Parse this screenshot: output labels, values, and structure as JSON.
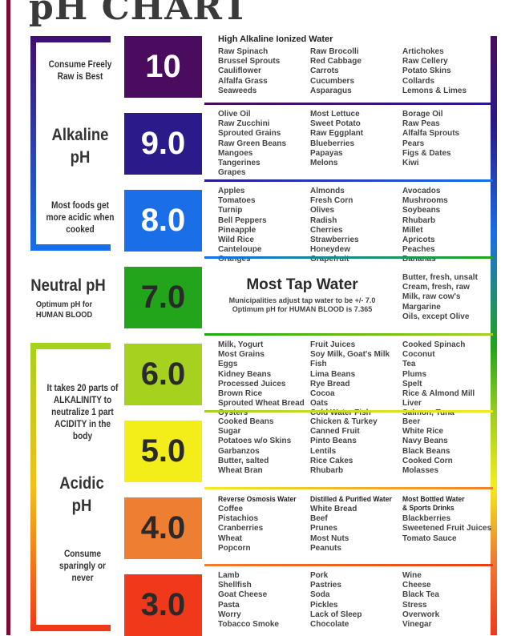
{
  "title": "pH CHART",
  "left_labels": {
    "consume_freely": "Consume Freely Raw is Best",
    "alkaline": "Alkaline pH",
    "most_foods": "Most foods get more acidic when cooked",
    "neutral": "Neutral pH",
    "optimum": "Optimum pH for HUMAN BLOOD",
    "twenty_parts": "It takes 20 parts of ALKALINITY to neutralize 1 part ACIDITY in the body",
    "acidic": "Acidic pH",
    "sparingly": "Consume sparingly or never"
  },
  "levels": [
    {
      "ph": "10",
      "color": "#4b0b5e",
      "text_color": "#ffffff",
      "header": "High Alkaline Ionized Water",
      "columns": [
        [
          "Raw Spinach",
          "Brussel Sprouts",
          "Cauliflower",
          "Alfalfa Grass",
          "Seaweeds"
        ],
        [
          "Raw Brocolli",
          "Red Cabbage",
          "Carrots",
          "Cucumbers",
          "Asparagus"
        ],
        [
          "Artichokes",
          "Raw Cellery",
          "Potato Skins",
          "Collards",
          "Lemons & Limes"
        ]
      ]
    },
    {
      "ph": "9.0",
      "color": "#2a1a8a",
      "text_color": "#ffffff",
      "columns": [
        [
          "Olive Oil",
          "Raw Zucchini",
          "Sprouted Grains",
          "Raw Green Beans",
          "Mangoes",
          "Tangerines",
          "Grapes"
        ],
        [
          "Most Lettuce",
          "Sweet Potato",
          "Raw Eggplant",
          "Blueberries",
          "Papayas",
          "Melons"
        ],
        [
          "Borage Oil",
          "Raw Peas",
          "Alfalfa Sprouts",
          "Pears",
          "Figs & Dates",
          "Kiwi"
        ]
      ]
    },
    {
      "ph": "8.0",
      "color": "#1a6ee8",
      "text_color": "#ffffff",
      "columns": [
        [
          "Apples",
          "Tomatoes",
          "Turnip",
          "Bell Peppers",
          "Pineapple",
          "Wild Rice",
          "Canteloupe",
          "Oranges"
        ],
        [
          "Almonds",
          "Fresh Corn",
          "Olives",
          "Radish",
          "Cherries",
          "Strawberries",
          "Honeydew",
          "Grapefruit"
        ],
        [
          "Avocados",
          "Mushrooms",
          "Soybeans",
          "Rhubarb",
          "Millet",
          "Apricots",
          "Peaches",
          "Bananas"
        ]
      ]
    },
    {
      "ph": "7.0",
      "color": "#22a51a",
      "text_color": "#2a2a2a",
      "headline": "Most Tap Water",
      "sub": [
        "Municipalities adjust tap water to be +/- 7.0",
        "Optimum pH for HUMAN BLOOD is 7.365"
      ],
      "columns": [
        [
          "Butter, fresh, unsalt",
          "Cream, fresh, raw",
          "Milk, raw cow's",
          "Margarine",
          "Oils, except Olive"
        ]
      ]
    },
    {
      "ph": "6.0",
      "color": "#a6d11e",
      "text_color": "#2a2a2a",
      "columns": [
        [
          "Milk, Yogurt",
          "Most Grains",
          "Eggs",
          "Kidney Beans",
          "Processed Juices",
          "Brown Rice",
          "Sprouted Wheat Bread",
          "Oysters"
        ],
        [
          "Fruit Juices",
          "Soy Milk, Goat's Milk",
          "Fish",
          "Lima Beans",
          "Rye Bread",
          "Cocoa",
          "Oats",
          "Cold Water Fish"
        ],
        [
          "Cooked Spinach",
          "Coconut",
          "Tea",
          "Plums",
          "Spelt",
          "Rice & Almond Mill",
          "Liver",
          "Salmon, Tuna"
        ]
      ]
    },
    {
      "ph": "5.0",
      "color": "#f3ed1a",
      "text_color": "#2a2a2a",
      "columns": [
        [
          "Cooked Beans",
          "Sugar",
          "Potatoes w/o Skins",
          "Garbanzos",
          "Butter, salted",
          "Wheat Bran"
        ],
        [
          "Chicken & Turkey",
          "Canned Fruit",
          "Pinto Beans",
          "Lentils",
          "Rice Cakes",
          "Rhubarb"
        ],
        [
          "Beer",
          "White Rice",
          "Navy Beans",
          "Black Beans",
          "Cooked Corn",
          "Molasses"
        ]
      ]
    },
    {
      "ph": "4.0",
      "color": "#ee7f32",
      "text_color": "#2a2a2a",
      "col_headers": [
        "Reverse Osmosis Water",
        "Distilled & Purified Water",
        "Most Bottled Water & Sports Drinks"
      ],
      "columns": [
        [
          "Coffee",
          "Pistachios",
          "Cranberries",
          "Wheat",
          "Popcorn"
        ],
        [
          "White Bread",
          "Beef",
          "Prunes",
          "Most Nuts",
          "Peanuts"
        ],
        [
          "",
          "Blackberries",
          "Sweetened Fruit Juices",
          "Tomato Sauce"
        ]
      ]
    },
    {
      "ph": "3.0",
      "color": "#f0391a",
      "text_color": "#2a2a2a",
      "columns": [
        [
          "Lamb",
          "Shellfish",
          "Goat Cheese",
          "Pasta",
          "Worry",
          "Tobacco Smoke"
        ],
        [
          "Pork",
          "Pastries",
          "Soda",
          "Pickles",
          "Lack of Sleep",
          "Chocolate"
        ],
        [
          "Wine",
          "Cheese",
          "Black Tea",
          "Stress",
          "Overwork",
          "Vinegar"
        ]
      ]
    }
  ]
}
